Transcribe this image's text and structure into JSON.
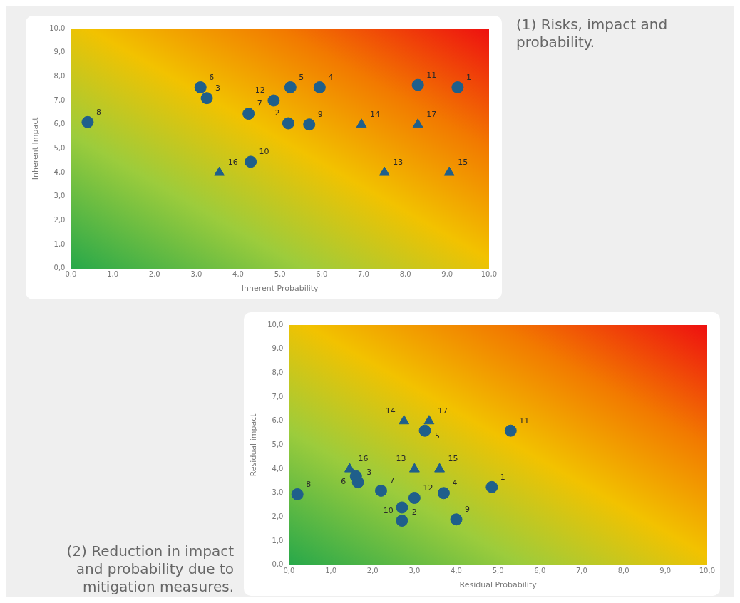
{
  "chart_data": [
    {
      "type": "scatter",
      "xlabel": "Inherent Probability",
      "ylabel": "Inherent Impact",
      "xlim": [
        0,
        10
      ],
      "ylim": [
        0,
        10
      ],
      "xticks": [
        {
          "value": 0,
          "label": "0,0"
        },
        {
          "value": 1,
          "label": "1,0"
        },
        {
          "value": 2,
          "label": "2,0"
        },
        {
          "value": 3,
          "label": "3,0"
        },
        {
          "value": 4,
          "label": "4,0"
        },
        {
          "value": 5,
          "label": "5,0"
        },
        {
          "value": 6,
          "label": "6,0"
        },
        {
          "value": 7,
          "label": "7,0"
        },
        {
          "value": 8,
          "label": "8,0"
        },
        {
          "value": 9,
          "label": "9,0"
        },
        {
          "value": 10,
          "label": "10,0"
        }
      ],
      "yticks": [
        {
          "value": 0,
          "label": "0,0"
        },
        {
          "value": 1,
          "label": "1,0"
        },
        {
          "value": 2,
          "label": "2,0"
        },
        {
          "value": 3,
          "label": "3,0"
        },
        {
          "value": 4,
          "label": "4,0"
        },
        {
          "value": 5,
          "label": "5,0"
        },
        {
          "value": 6,
          "label": "6,0"
        },
        {
          "value": 7,
          "label": "7,0"
        },
        {
          "value": 8,
          "label": "8,0"
        },
        {
          "value": 9,
          "label": "9,0"
        },
        {
          "value": 10,
          "label": "10,0"
        }
      ],
      "grid": false,
      "legend": false,
      "series": [
        {
          "color": "#1f5f8b",
          "marker": "circle",
          "x": [
            9.25,
            5.2,
            3.25,
            5.95,
            5.25,
            3.1,
            4.25,
            0.4,
            5.7,
            4.3,
            8.3,
            4.85
          ],
          "values": [
            7.55,
            6.05,
            7.1,
            7.55,
            7.55,
            7.55,
            6.45,
            6.1,
            6.0,
            4.45,
            7.65,
            7.0
          ]
        },
        {
          "color": "#1f5f8b",
          "marker": "triangle",
          "x": [
            7.5,
            6.95,
            9.05,
            3.55,
            8.3
          ],
          "values": [
            4.0,
            6.0,
            4.0,
            4.0,
            6.0
          ]
        }
      ],
      "annotations": [
        "(1) Risks, impact and probability.",
        {
          "text": "1",
          "x": 9.25,
          "y": 7.55
        },
        {
          "text": "2",
          "x": 5.2,
          "y": 6.05
        },
        {
          "text": "3",
          "x": 3.25,
          "y": 7.1
        },
        {
          "text": "4",
          "x": 5.95,
          "y": 7.55
        },
        {
          "text": "5",
          "x": 5.25,
          "y": 7.55
        },
        {
          "text": "6",
          "x": 3.1,
          "y": 7.55
        },
        {
          "text": "7",
          "x": 4.25,
          "y": 6.45
        },
        {
          "text": "8",
          "x": 0.4,
          "y": 6.1
        },
        {
          "text": "9",
          "x": 5.7,
          "y": 6.0
        },
        {
          "text": "10",
          "x": 4.3,
          "y": 4.45
        },
        {
          "text": "11",
          "x": 8.3,
          "y": 7.65
        },
        {
          "text": "12",
          "x": 4.85,
          "y": 7.0
        },
        {
          "text": "13",
          "x": 7.5,
          "y": 4.0
        },
        {
          "text": "14",
          "x": 6.95,
          "y": 6.0
        },
        {
          "text": "15",
          "x": 9.05,
          "y": 4.0
        },
        {
          "text": "16",
          "x": 3.55,
          "y": 4.0
        },
        {
          "text": "17",
          "x": 8.3,
          "y": 6.0
        }
      ]
    },
    {
      "type": "scatter",
      "xlabel": "Residual Probability",
      "ylabel": "Residual impact",
      "xlim": [
        0,
        10
      ],
      "ylim": [
        0,
        10
      ],
      "xticks": [
        {
          "value": 0,
          "label": "0,0"
        },
        {
          "value": 1,
          "label": "1,0"
        },
        {
          "value": 2,
          "label": "2,0"
        },
        {
          "value": 3,
          "label": "3,0"
        },
        {
          "value": 4,
          "label": "4,0"
        },
        {
          "value": 5,
          "label": "5,0"
        },
        {
          "value": 6,
          "label": "6,0"
        },
        {
          "value": 7,
          "label": "7,0"
        },
        {
          "value": 8,
          "label": "8,0"
        },
        {
          "value": 9,
          "label": "9,0"
        },
        {
          "value": 10,
          "label": "10,0"
        }
      ],
      "yticks": [
        {
          "value": 0,
          "label": "0,0"
        },
        {
          "value": 1,
          "label": "1,0"
        },
        {
          "value": 2,
          "label": "2,0"
        },
        {
          "value": 3,
          "label": "3,0"
        },
        {
          "value": 4,
          "label": "4,0"
        },
        {
          "value": 5,
          "label": "5,0"
        },
        {
          "value": 6,
          "label": "6,0"
        },
        {
          "value": 7,
          "label": "7,0"
        },
        {
          "value": 8,
          "label": "8,0"
        },
        {
          "value": 9,
          "label": "9,0"
        },
        {
          "value": 10,
          "label": "10,0"
        }
      ],
      "grid": false,
      "legend": false,
      "series": [
        {
          "color": "#1f5f8b",
          "marker": "circle",
          "x": [
            4.85,
            2.7,
            1.65,
            3.7,
            3.25,
            1.6,
            2.2,
            0.2,
            4.0,
            2.7,
            5.3,
            3.0
          ],
          "values": [
            3.25,
            2.4,
            3.45,
            3.0,
            5.6,
            3.7,
            3.1,
            2.95,
            1.9,
            1.85,
            5.6,
            2.8
          ]
        },
        {
          "color": "#1f5f8b",
          "marker": "triangle",
          "x": [
            3.0,
            2.75,
            3.6,
            1.45,
            3.35
          ],
          "values": [
            4.0,
            6.0,
            4.0,
            4.0,
            6.0
          ]
        }
      ],
      "annotations": [
        "(2) Reduction in impact and probability due to mitigation measures.",
        {
          "text": "1",
          "x": 4.85,
          "y": 3.25
        },
        {
          "text": "2",
          "x": 2.7,
          "y": 2.4
        },
        {
          "text": "3",
          "x": 1.65,
          "y": 3.45
        },
        {
          "text": "4",
          "x": 3.7,
          "y": 3.0
        },
        {
          "text": "5",
          "x": 3.25,
          "y": 5.6
        },
        {
          "text": "6",
          "x": 1.6,
          "y": 3.7
        },
        {
          "text": "7",
          "x": 2.2,
          "y": 3.1
        },
        {
          "text": "8",
          "x": 0.2,
          "y": 2.95
        },
        {
          "text": "9",
          "x": 4.0,
          "y": 1.9
        },
        {
          "text": "10",
          "x": 2.7,
          "y": 1.85
        },
        {
          "text": "11",
          "x": 5.3,
          "y": 5.6
        },
        {
          "text": "12",
          "x": 3.0,
          "y": 2.8
        },
        {
          "text": "13",
          "x": 3.0,
          "y": 4.0
        },
        {
          "text": "14",
          "x": 2.75,
          "y": 6.0
        },
        {
          "text": "15",
          "x": 3.6,
          "y": 4.0
        },
        {
          "text": "16",
          "x": 1.45,
          "y": 4.0
        },
        {
          "text": "17",
          "x": 3.35,
          "y": 6.0
        }
      ]
    }
  ]
}
